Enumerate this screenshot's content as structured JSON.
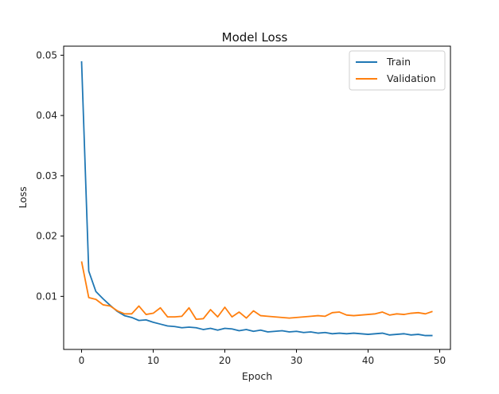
{
  "chart_data": {
    "type": "line",
    "title": "Model Loss",
    "xlabel": "Epoch",
    "ylabel": "Loss",
    "xlim": [
      -2.5,
      51.5
    ],
    "ylim": [
      0.0012,
      0.0515
    ],
    "xticks": [
      0,
      10,
      20,
      30,
      40,
      50
    ],
    "yticks": [
      0.01,
      0.02,
      0.03,
      0.04,
      0.05
    ],
    "xtick_labels": [
      "0",
      "10",
      "20",
      "30",
      "40",
      "50"
    ],
    "ytick_labels": [
      "0.01",
      "0.02",
      "0.03",
      "0.04",
      "0.05"
    ],
    "grid": false,
    "legend_position": "top-right",
    "x": [
      0,
      1,
      2,
      3,
      4,
      5,
      6,
      7,
      8,
      9,
      10,
      11,
      12,
      13,
      14,
      15,
      16,
      17,
      18,
      19,
      20,
      21,
      22,
      23,
      24,
      25,
      26,
      27,
      28,
      29,
      30,
      31,
      32,
      33,
      34,
      35,
      36,
      37,
      38,
      39,
      40,
      41,
      42,
      43,
      44,
      45,
      46,
      47,
      48,
      49
    ],
    "series": [
      {
        "name": "Train",
        "color": "#1f77b4",
        "values": [
          0.049,
          0.0142,
          0.0108,
          0.0096,
          0.0085,
          0.0075,
          0.0068,
          0.0065,
          0.006,
          0.0061,
          0.0057,
          0.0054,
          0.0051,
          0.005,
          0.0048,
          0.0049,
          0.0048,
          0.0045,
          0.0047,
          0.0044,
          0.0047,
          0.0046,
          0.0043,
          0.0045,
          0.0042,
          0.0044,
          0.0041,
          0.0042,
          0.0043,
          0.0041,
          0.0042,
          0.004,
          0.0041,
          0.0039,
          0.004,
          0.0038,
          0.0039,
          0.0038,
          0.0039,
          0.0038,
          0.0037,
          0.0038,
          0.0039,
          0.0036,
          0.0037,
          0.0038,
          0.0036,
          0.0037,
          0.0035,
          0.0035
        ]
      },
      {
        "name": "Validation",
        "color": "#ff7f0e",
        "values": [
          0.0158,
          0.0098,
          0.0095,
          0.0086,
          0.0084,
          0.0076,
          0.0071,
          0.0071,
          0.0084,
          0.007,
          0.0072,
          0.0081,
          0.0066,
          0.0066,
          0.0067,
          0.0081,
          0.0062,
          0.0063,
          0.0078,
          0.0066,
          0.0082,
          0.0066,
          0.0074,
          0.0064,
          0.0076,
          0.0068,
          0.0067,
          0.0066,
          0.0065,
          0.0064,
          0.0065,
          0.0066,
          0.0067,
          0.0068,
          0.0067,
          0.0073,
          0.0074,
          0.0069,
          0.0068,
          0.0069,
          0.007,
          0.0071,
          0.0074,
          0.0069,
          0.0071,
          0.007,
          0.0072,
          0.0073,
          0.0071,
          0.0075
        ]
      }
    ]
  }
}
